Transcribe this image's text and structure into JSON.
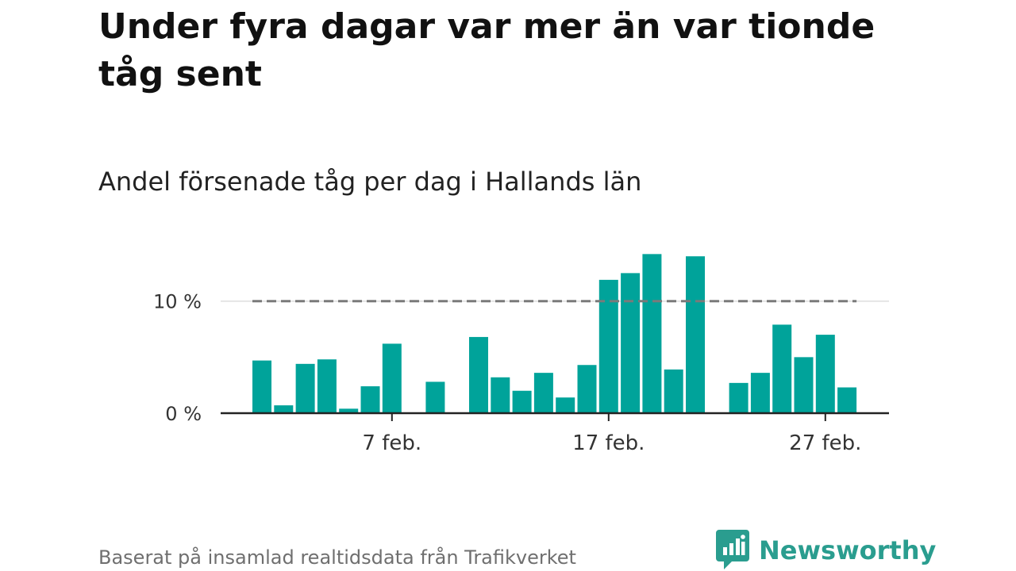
{
  "header": {
    "title": "Under fyra dagar var mer än var tionde tåg sent",
    "subtitle": "Andel försenade tåg per dag i Hallands län"
  },
  "footer": {
    "source": "Baserat på insamlad realtidsdata från Trafikverket"
  },
  "brand": {
    "name": "Newsworthy",
    "color": "#2a9d8f",
    "icon": "newsworthy-logo-icon"
  },
  "chart_data": {
    "type": "bar",
    "x_unit": "day in February",
    "x": [
      1,
      2,
      3,
      4,
      5,
      6,
      7,
      8,
      9,
      10,
      11,
      12,
      13,
      14,
      15,
      16,
      17,
      18,
      19,
      20,
      21,
      22,
      23,
      24,
      25,
      26,
      27,
      28
    ],
    "values": [
      4.7,
      0.7,
      4.4,
      4.8,
      0.4,
      2.4,
      6.2,
      null,
      2.8,
      null,
      6.8,
      3.2,
      2.0,
      3.6,
      1.4,
      4.3,
      11.9,
      12.5,
      14.2,
      3.9,
      14.0,
      null,
      2.7,
      3.6,
      7.9,
      5.0,
      7.0,
      2.3
    ],
    "ylim": [
      0,
      15
    ],
    "yticks": [
      0,
      10
    ],
    "ytick_labels": [
      "0 %",
      "10 %"
    ],
    "xticks": [
      7,
      17,
      27
    ],
    "xtick_labels": [
      "7 feb.",
      "17 feb.",
      "27 feb."
    ],
    "reference_line": {
      "value": 10,
      "style": "dashed"
    },
    "grid": true,
    "bar_color": "#00a39a",
    "reference_line_color": "#7a7a7a",
    "axis_color": "#222222"
  }
}
